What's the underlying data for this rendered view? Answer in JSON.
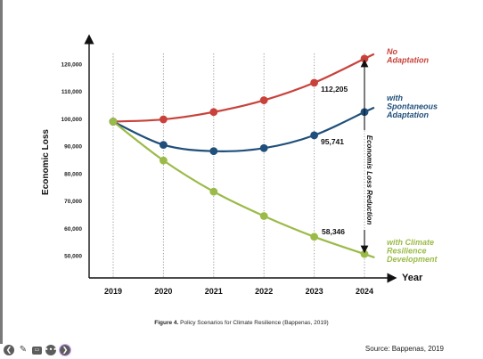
{
  "chart_data": {
    "type": "line",
    "ylabel": "Economic Loss",
    "xlabel": "Year",
    "categories": [
      "2019",
      "2020",
      "2021",
      "2022",
      "2023",
      "2024"
    ],
    "ylim": [
      45000,
      130000
    ],
    "y_ticks": [
      "120,000",
      "110,000",
      "100,000",
      "90,000",
      "80,000",
      "70,000",
      "60,000",
      "50,000"
    ],
    "y_tick_values": [
      120000,
      110000,
      100000,
      90000,
      80000,
      70000,
      60000,
      50000
    ],
    "grid_vertical": true,
    "series": [
      {
        "key": "noadapt",
        "label_lines": [
          "No",
          "Adaptation"
        ],
        "color": "#c8423b",
        "values": [
          99000,
          99800,
          102500,
          106800,
          113200,
          122000
        ]
      },
      {
        "key": "spont",
        "label_lines": [
          "with",
          "Spontaneous",
          "Adaptation"
        ],
        "color": "#1f4f7a",
        "values": [
          99000,
          90500,
          88200,
          89300,
          94000,
          102500
        ]
      },
      {
        "key": "resil",
        "label_lines": [
          "with Climate",
          "Resilience",
          "Development"
        ],
        "color": "#9bbb48",
        "values": [
          99000,
          84800,
          73400,
          64500,
          56900,
          50600
        ]
      }
    ],
    "annotations": [
      {
        "key": "a1",
        "text": "112,205"
      },
      {
        "key": "a2",
        "text": "95,741"
      },
      {
        "key": "a3",
        "text": "58,346"
      }
    ],
    "reduction_label": "Economis Loss Reduction"
  },
  "caption": {
    "bold": "Figure 4.",
    "text": " Policy Scenarios for Climate Resilience (Bappenas, 2019)"
  },
  "source": "Source: Bappenas, 2019",
  "toolbar": {
    "back": "❮",
    "pen": "✎",
    "slides": "▭",
    "more": "•••",
    "next": "❯"
  }
}
